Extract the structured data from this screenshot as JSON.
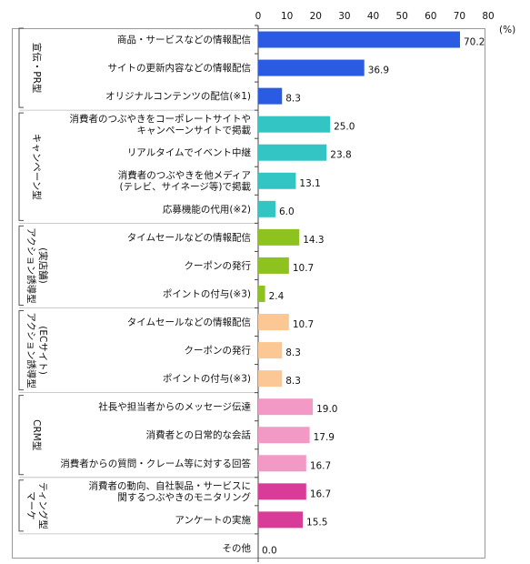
{
  "chart_data": {
    "type": "bar",
    "orientation": "horizontal",
    "unit": "(%)",
    "xlim": [
      0,
      80
    ],
    "xticks": [
      "0",
      "10",
      "20",
      "30",
      "40",
      "50",
      "60",
      "70",
      "80"
    ],
    "grid": false,
    "groups": [
      {
        "name": "宣伝・PR型",
        "color": "#2b5be3",
        "lines": [
          "宣伝・PR型"
        ],
        "items": [
          {
            "label": [
              "商品・サービスなどの情報配信"
            ],
            "value": 70.2
          },
          {
            "label": [
              "サイトの更新内容などの情報配信"
            ],
            "value": 36.9
          },
          {
            "label": [
              "オリジナルコンテンツの配信(※1)"
            ],
            "value": 8.3
          }
        ]
      },
      {
        "name": "キャンペーン型",
        "color": "#33c4c4",
        "lines": [
          "キャンペーン型"
        ],
        "items": [
          {
            "label": [
              "消費者のつぶやきをコーポレートサイトや",
              "キャンペーンサイトで掲載"
            ],
            "value": 25.0
          },
          {
            "label": [
              "リアルタイムでイベント中継"
            ],
            "value": 23.8
          },
          {
            "label": [
              "消費者のつぶやきを他メディア",
              "(テレビ、サイネージ等)で掲載"
            ],
            "value": 13.1
          },
          {
            "label": [
              "応募機能の代用(※2)"
            ],
            "value": 6.0
          }
        ]
      },
      {
        "name": "アクション誘導型(実店舗)",
        "color": "#8dc21f",
        "lines": [
          "アクション誘導型",
          "(実店舗)"
        ],
        "items": [
          {
            "label": [
              "タイムセールなどの情報配信"
            ],
            "value": 14.3
          },
          {
            "label": [
              "クーポンの発行"
            ],
            "value": 10.7
          },
          {
            "label": [
              "ポイントの付与(※3)"
            ],
            "value": 2.4
          }
        ]
      },
      {
        "name": "アクション誘導型(ECサイト)",
        "color": "#fbc795",
        "lines": [
          "アクション誘導型",
          "(ECサイト)"
        ],
        "items": [
          {
            "label": [
              "タイムセールなどの情報配信"
            ],
            "value": 10.7
          },
          {
            "label": [
              "クーポンの発行"
            ],
            "value": 8.3
          },
          {
            "label": [
              "ポイントの付与(※3)"
            ],
            "value": 8.3
          }
        ]
      },
      {
        "name": "CRM型",
        "color": "#f299c6",
        "lines": [
          "CRM型"
        ],
        "items": [
          {
            "label": [
              "社長や担当者からのメッセージ伝達"
            ],
            "value": 19.0
          },
          {
            "label": [
              "消費者との日常的な会話"
            ],
            "value": 17.9
          },
          {
            "label": [
              "消費者からの質問・クレーム等に対する回答"
            ],
            "value": 16.7
          }
        ]
      },
      {
        "name": "マーケティング型",
        "color": "#d93b99",
        "lines": [
          "マーケ",
          "ティング型"
        ],
        "items": [
          {
            "label": [
              "消費者の動向、自社製品・サービスに",
              "関するつぶやきのモニタリング"
            ],
            "value": 16.7
          },
          {
            "label": [
              "アンケートの実施"
            ],
            "value": 15.5
          }
        ]
      },
      {
        "name": "",
        "color": "#999999",
        "lines": [],
        "items": [
          {
            "label": [
              "その他"
            ],
            "value": 0.0
          }
        ]
      }
    ]
  }
}
